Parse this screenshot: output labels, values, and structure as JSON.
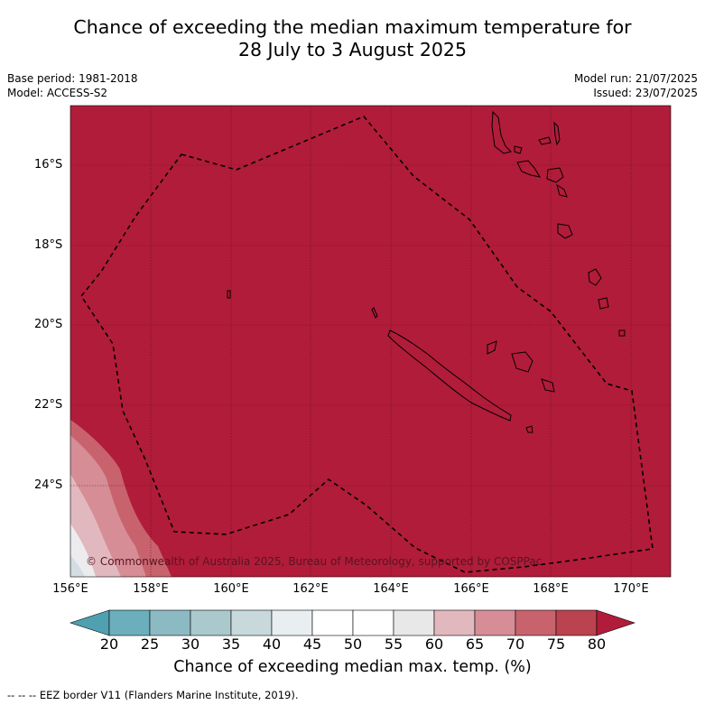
{
  "title_line1": "Chance of exceeding the median maximum temperature for",
  "title_line2": "28 July to 3 August 2025",
  "base_period": "Base period: 1981-2018",
  "model": "Model: ACCESS-S2",
  "model_run": "Model run: 21/07/2025",
  "issued": "Issued: 23/07/2025",
  "copyright": "© Commonwealth of Australia 2025, Bureau of Meteorology, supported by COSPPac",
  "footer": "--  --  -- EEZ border V11 (Flanders Marine Institute, 2019).",
  "lat_ticks": [
    "16°S",
    "18°S",
    "20°S",
    "22°S",
    "24°S"
  ],
  "lon_ticks": [
    "156°E",
    "158°E",
    "160°E",
    "162°E",
    "164°E",
    "166°E",
    "168°E",
    "170°E"
  ],
  "colorbar": {
    "title": "Chance of exceeding median max. temp. (%)",
    "ticks": [
      "20",
      "25",
      "30",
      "35",
      "40",
      "45",
      "50",
      "55",
      "60",
      "65",
      "70",
      "75",
      "80"
    ],
    "colors": [
      "#4fa1b1",
      "#6bafbc",
      "#8cbac3",
      "#a9c9cc",
      "#c8d9db",
      "#e9eff1",
      "#ffffff",
      "#ffffff",
      "#e8e8e8",
      "#e2b8bf",
      "#d68d96",
      "#c8636d",
      "#bb424f",
      "#b11c3a"
    ]
  },
  "map_fill_color": "#b11c3a"
}
